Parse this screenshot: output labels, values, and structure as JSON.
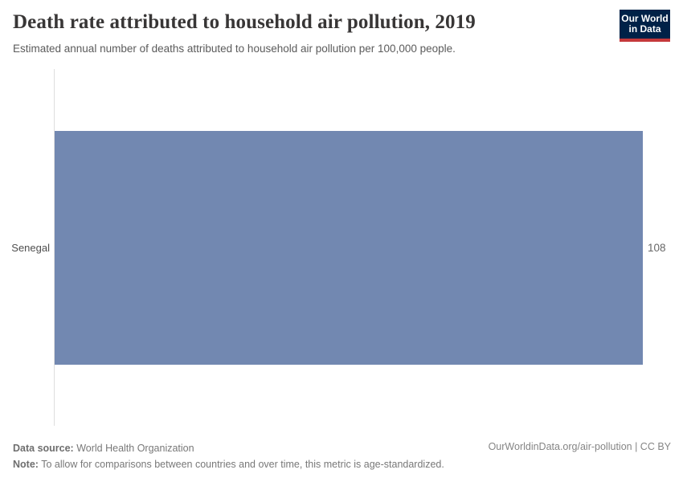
{
  "header": {
    "title": "Death rate attributed to household air pollution, 2019",
    "subtitle": "Estimated annual number of deaths attributed to household air pollution per 100,000 people.",
    "logo_line1": "Our World",
    "logo_line2": "in Data"
  },
  "chart_data": {
    "type": "bar",
    "orientation": "horizontal",
    "title": "Death rate attributed to household air pollution, 2019",
    "subtitle": "Estimated annual number of deaths attributed to household air pollution per 100,000 people.",
    "categories": [
      "Senegal"
    ],
    "values": [
      108
    ],
    "xlabel": "",
    "ylabel": "",
    "xlim": [
      0,
      108
    ],
    "grid": false,
    "legend": false,
    "bar_color": "#7288b1"
  },
  "footer": {
    "data_source_label": "Data source:",
    "data_source_value": " World Health Organization",
    "note_label": "Note:",
    "note_value": " To allow for comparisons between countries and over time, this metric is age-standardized.",
    "citation": "OurWorldinData.org/air-pollution | CC BY"
  },
  "colors": {
    "bar": "#7288b1",
    "logo_background": "#002147",
    "logo_underline": "#c5393b",
    "title_text": "#383636",
    "subtitle_text": "#5b5b5b",
    "axis_line": "#dedede",
    "footer_text": "#787878"
  }
}
